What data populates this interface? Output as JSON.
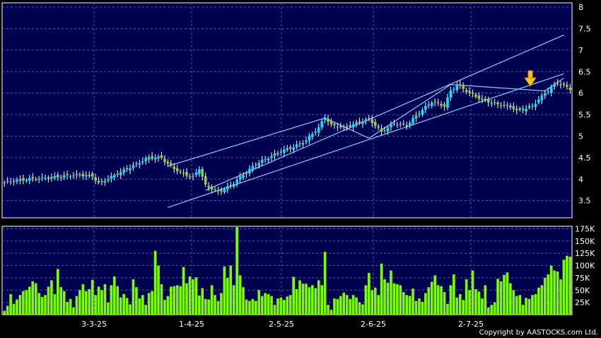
{
  "copyright": "Copyright by AASTOCKS.com Ltd.",
  "colors": {
    "panel_bg": "#000050",
    "grid": "#5a5a8a",
    "up_candle": "#00e5ff",
    "down_candle": "#9acd32",
    "volume_bar": "#7cfc00",
    "trend_line": "#87cefa",
    "arrow": "#ffc61a"
  },
  "chart_data": [
    {
      "type": "candlestick",
      "title": "",
      "x_tick_labels": [
        "3-3-25",
        "1-4-25",
        "2-5-25",
        "2-6-25",
        "2-7-25"
      ],
      "y_tick_labels": [
        "3.5",
        "4",
        "4.5",
        "5",
        "5.5",
        "6",
        "6.5",
        "7",
        "7.5",
        "8"
      ],
      "ylim": [
        3.1,
        8.1
      ],
      "grid": true,
      "annotation": "downward-arrow marker above latest sessions",
      "close_path": [
        [
          0,
          3.93
        ],
        [
          4,
          3.97
        ],
        [
          8,
          4.0
        ],
        [
          12,
          4.02
        ],
        [
          16,
          4.05
        ],
        [
          20,
          4.08
        ],
        [
          24,
          4.1
        ],
        [
          28,
          4.07
        ],
        [
          30,
          3.9
        ],
        [
          34,
          4.05
        ],
        [
          38,
          4.2
        ],
        [
          42,
          4.35
        ],
        [
          46,
          4.5
        ],
        [
          50,
          4.5
        ],
        [
          52,
          4.35
        ],
        [
          56,
          4.15
        ],
        [
          60,
          4.05
        ],
        [
          62,
          4.25
        ],
        [
          64,
          3.85
        ],
        [
          68,
          3.7
        ],
        [
          72,
          3.85
        ],
        [
          76,
          4.1
        ],
        [
          80,
          4.35
        ],
        [
          84,
          4.5
        ],
        [
          88,
          4.65
        ],
        [
          92,
          4.75
        ],
        [
          96,
          4.9
        ],
        [
          100,
          5.2
        ],
        [
          102,
          5.45
        ],
        [
          104,
          5.25
        ],
        [
          108,
          5.2
        ],
        [
          112,
          5.3
        ],
        [
          116,
          5.4
        ],
        [
          120,
          5.1
        ],
        [
          124,
          5.3
        ],
        [
          128,
          5.25
        ],
        [
          132,
          5.55
        ],
        [
          136,
          5.8
        ],
        [
          140,
          5.7
        ],
        [
          142,
          6.05
        ],
        [
          144,
          6.2
        ],
        [
          148,
          6.0
        ],
        [
          152,
          5.85
        ],
        [
          156,
          5.75
        ],
        [
          160,
          5.7
        ],
        [
          164,
          5.6
        ],
        [
          168,
          5.7
        ],
        [
          172,
          6.0
        ],
        [
          176,
          6.25
        ],
        [
          180,
          6.1
        ]
      ],
      "trendlines": [
        {
          "from": [
            52,
            4.3
          ],
          "to": [
            102,
            5.42
          ]
        },
        {
          "from": [
            52,
            3.34
          ],
          "to": [
            178,
            6.45
          ]
        },
        {
          "from": [
            64,
            3.74
          ],
          "to": [
            178,
            7.35
          ]
        },
        {
          "from": [
            102,
            5.42
          ],
          "to": [
            116,
            4.95
          ]
        },
        {
          "from": [
            116,
            4.95
          ],
          "to": [
            142,
            6.2
          ]
        },
        {
          "from": [
            142,
            6.2
          ],
          "to": [
            172,
            6.05
          ]
        },
        {
          "from": [
            172,
            6.05
          ],
          "to": [
            178,
            6.35
          ]
        }
      ]
    },
    {
      "type": "bar",
      "title": "",
      "y_tick_labels": [
        "25K",
        "50K",
        "75K",
        "100K",
        "125K",
        "150K",
        "175K"
      ],
      "ylim": [
        0,
        180000
      ],
      "volume": [
        8000,
        18000,
        42000,
        22000,
        31000,
        40000,
        48000,
        50000,
        57000,
        68000,
        64000,
        44000,
        36000,
        40000,
        57000,
        70000,
        42000,
        93000,
        56000,
        48000,
        26000,
        32000,
        15000,
        38000,
        50000,
        62000,
        48000,
        52000,
        71000,
        40000,
        57000,
        50000,
        62000,
        25000,
        60000,
        78000,
        58000,
        35000,
        42000,
        34000,
        21000,
        72000,
        56000,
        33000,
        40000,
        20000,
        44000,
        48000,
        130000,
        100000,
        62000,
        30000,
        38000,
        57000,
        58000,
        60000,
        58000,
        97000,
        64000,
        78000,
        72000,
        76000,
        39000,
        54000,
        32000,
        31000,
        60000,
        40000,
        28000,
        44000,
        98000,
        75000,
        100000,
        60000,
        185000,
        80000,
        56000,
        31000,
        28000,
        32000,
        28000,
        50000,
        38000,
        44000,
        42000,
        38000,
        20000,
        33000,
        35000,
        30000,
        37000,
        40000,
        77000,
        52000,
        70000,
        63000,
        63000,
        56000,
        60000,
        54000,
        70000,
        60000,
        128000,
        20000,
        10000,
        33000,
        32000,
        38000,
        45000,
        40000,
        32000,
        40000,
        35000,
        25000,
        21000,
        60000,
        85000,
        50000,
        55000,
        40000,
        104000,
        72000,
        65000,
        90000,
        64000,
        62000,
        60000,
        46000,
        40000,
        38000,
        53000,
        28000,
        33000,
        26000,
        44000,
        56000,
        67000,
        80000,
        60000,
        58000,
        46000,
        22000,
        60000,
        82000,
        35000,
        42000,
        30000,
        72000,
        50000,
        90000,
        52000,
        47000,
        33000,
        60000,
        15000,
        20000,
        25000,
        73000,
        68000,
        81000,
        86000,
        64000,
        50000,
        38000,
        40000,
        20000,
        34000,
        32000,
        40000,
        42000,
        55000,
        60000,
        75000,
        82000,
        100000,
        90000,
        88000,
        72000,
        112000,
        120000,
        118000
      ]
    }
  ]
}
